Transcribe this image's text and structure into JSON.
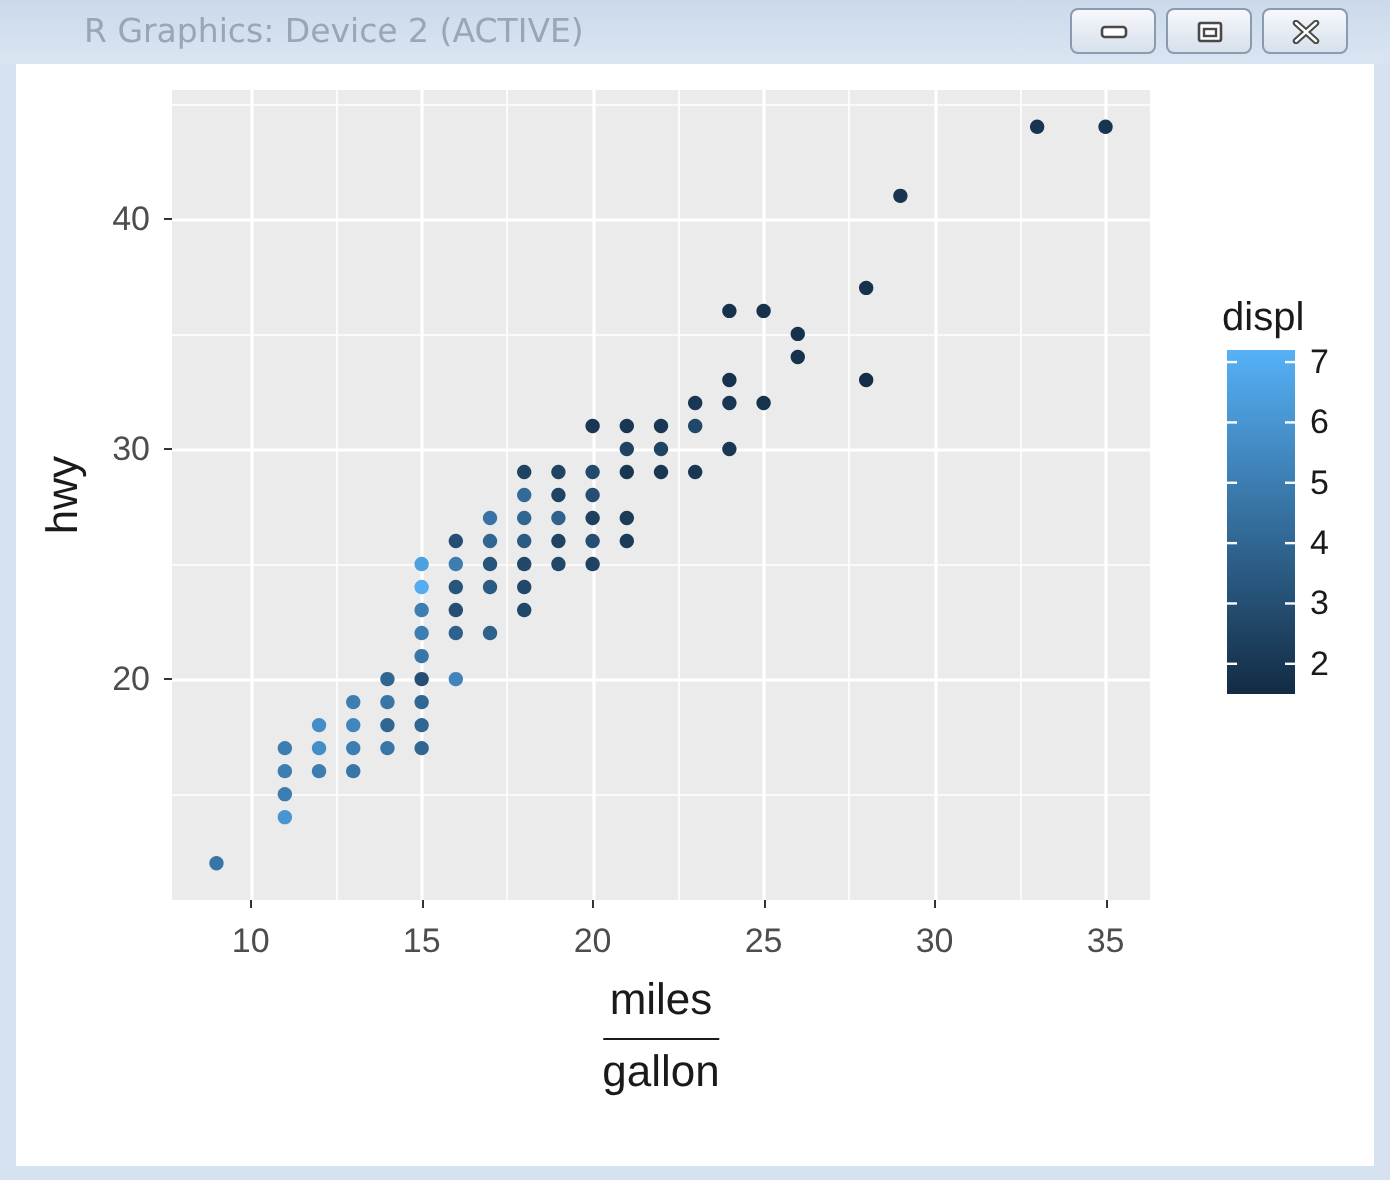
{
  "chart_data": {
    "type": "scatter",
    "title": "R Graphics: Device 2 (ACTIVE)",
    "xlabel": "miles\ngallon",
    "ylabel": "hwy",
    "clabel": "displ",
    "x": [
      9,
      11,
      11,
      11,
      11,
      12,
      12,
      12,
      13,
      13,
      13,
      13,
      14,
      14,
      14,
      14,
      15,
      15,
      15,
      15,
      15,
      15,
      15,
      15,
      15,
      16,
      16,
      16,
      16,
      16,
      16,
      17,
      17,
      17,
      17,
      17,
      18,
      18,
      18,
      18,
      18,
      18,
      18,
      19,
      19,
      19,
      19,
      19,
      20,
      20,
      20,
      20,
      20,
      20,
      21,
      21,
      21,
      21,
      21,
      22,
      22,
      22,
      23,
      23,
      23,
      24,
      24,
      24,
      24,
      25,
      25,
      26,
      26,
      28,
      28,
      29,
      33,
      35
    ],
    "values": [
      12,
      14,
      15,
      16,
      17,
      16,
      17,
      18,
      16,
      17,
      18,
      19,
      17,
      18,
      19,
      20,
      17,
      18,
      19,
      20,
      21,
      22,
      23,
      24,
      25,
      20,
      22,
      23,
      24,
      25,
      26,
      22,
      24,
      25,
      26,
      27,
      23,
      24,
      25,
      26,
      27,
      28,
      29,
      25,
      26,
      27,
      28,
      29,
      25,
      26,
      27,
      28,
      29,
      31,
      26,
      27,
      29,
      30,
      31,
      29,
      30,
      31,
      29,
      31,
      32,
      30,
      32,
      33,
      36,
      32,
      36,
      34,
      35,
      33,
      37,
      41,
      44,
      44
    ],
    "cvalues": [
      4.7,
      6.0,
      5.0,
      5.0,
      5.0,
      5.0,
      5.7,
      5.7,
      4.7,
      5.0,
      5.4,
      5.0,
      4.7,
      4.0,
      4.7,
      4.0,
      4.0,
      4.0,
      4.0,
      3.0,
      4.7,
      5.0,
      5.0,
      7.0,
      6.5,
      5.3,
      3.8,
      3.0,
      3.3,
      5.0,
      3.0,
      3.8,
      3.5,
      3.3,
      4.0,
      4.6,
      2.7,
      2.7,
      2.7,
      3.5,
      4.0,
      4.2,
      2.5,
      2.7,
      2.5,
      3.8,
      2.5,
      2.5,
      2.5,
      3.0,
      2.4,
      3.0,
      2.8,
      2.0,
      2.2,
      2.2,
      2.0,
      2.5,
      2.0,
      2.0,
      2.5,
      2.0,
      2.0,
      2.7,
      2.0,
      2.0,
      2.0,
      1.8,
      1.8,
      1.8,
      1.8,
      1.8,
      1.8,
      1.6,
      1.8,
      1.9,
      1.9,
      1.9
    ],
    "xlim": [
      7.7,
      36.3
    ],
    "xticks": [
      10,
      15,
      20,
      25,
      30,
      35
    ],
    "ylim": [
      10.4,
      45.6
    ],
    "yticks": [
      20,
      30,
      40
    ],
    "clim": [
      1.5,
      7.2
    ],
    "cticks": [
      2,
      3,
      4,
      5,
      6,
      7
    ],
    "grid": true,
    "marker": "circle"
  }
}
